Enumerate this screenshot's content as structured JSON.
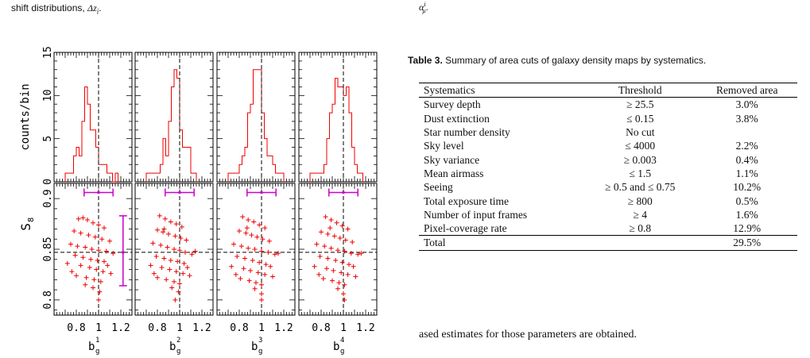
{
  "left_fragment": {
    "text": "shift distributions, ",
    "math": "Δz",
    "sub": "i",
    "tail": "."
  },
  "right_fragment": {
    "base": "α",
    "sup": "i",
    "sub": "μ",
    "tail": "."
  },
  "caption": {
    "label": "Table 3.",
    "text": " Summary of area cuts of galaxy density maps by systematics."
  },
  "table": {
    "headers": [
      "Systematics",
      "Threshold",
      "Removed area"
    ],
    "rows": [
      [
        "Survey depth",
        "≥ 25.5",
        "3.0%"
      ],
      [
        "Dust extinction",
        "≤ 0.15",
        "3.8%"
      ],
      [
        "Star number density",
        "No cut",
        ""
      ],
      [
        "Sky level",
        "≤ 4000",
        "2.2%"
      ],
      [
        "Sky variance",
        "≥ 0.003",
        "0.4%"
      ],
      [
        "Mean airmass",
        "≤ 1.5",
        "1.1%"
      ],
      [
        "Seeing",
        "≥ 0.5 and ≤ 0.75",
        "10.2%"
      ],
      [
        "Total exposure time",
        "≥ 800",
        "0.5%"
      ],
      [
        "Number of input frames",
        "≥ 4",
        "1.6%"
      ],
      [
        "Pixel-coverage rate",
        "≥ 0.8",
        "12.9%"
      ]
    ],
    "total": [
      "Total",
      "",
      "29.5%"
    ]
  },
  "body_text": "ased estimates for those parameters are obtained.",
  "chart_data": {
    "type": "histogram+scatter",
    "panels": [
      "b_g^1",
      "b_g^2",
      "b_g^3",
      "b_g^4"
    ],
    "xlabels": [
      {
        "base": "b",
        "sub": "g",
        "sup": "1"
      },
      {
        "base": "b",
        "sub": "g",
        "sup": "2"
      },
      {
        "base": "b",
        "sub": "g",
        "sup": "3"
      },
      {
        "base": "b",
        "sub": "g",
        "sup": "4"
      }
    ],
    "xticks": [
      "0.8",
      "1",
      "1.2"
    ],
    "xtick_values": [
      0.8,
      1.0,
      1.2
    ],
    "xlim": [
      0.6,
      1.3
    ],
    "top_ylabel": "counts/bin",
    "top_yticks": [
      "0",
      "5",
      "10",
      "15"
    ],
    "top_ytick_values": [
      0,
      5,
      10,
      15
    ],
    "top_ylim": [
      0,
      15
    ],
    "bottom_ylabel": "S",
    "bottom_ylabel_sub": "8",
    "bottom_yticks": [
      "0.8",
      "0.85",
      "0.9"
    ],
    "bottom_ytick_values": [
      0.8,
      0.85,
      0.9
    ],
    "bottom_ylim": [
      0.785,
      0.915
    ],
    "reference_x": 1.0,
    "reference_y": 0.847,
    "errorbar_color": "#cc00cc",
    "data_color": "#ee0000",
    "histograms": [
      {
        "edges": [
          0.7,
          0.725,
          0.75,
          0.775,
          0.8,
          0.825,
          0.85,
          0.875,
          0.9,
          0.925,
          0.95,
          0.975,
          1.0,
          1.025,
          1.05,
          1.075,
          1.1,
          1.125,
          1.15,
          1.175
        ],
        "counts": [
          1,
          1,
          1,
          3,
          4,
          3,
          7,
          11,
          9,
          6,
          6,
          4,
          2,
          2,
          2,
          1,
          1,
          0,
          1
        ]
      },
      {
        "edges": [
          0.7,
          0.725,
          0.75,
          0.775,
          0.8,
          0.825,
          0.85,
          0.875,
          0.9,
          0.925,
          0.95,
          0.975,
          1.0,
          1.025,
          1.05,
          1.075,
          1.1,
          1.125,
          1.15
        ],
        "counts": [
          1,
          1,
          1,
          1,
          1,
          2,
          5,
          3,
          7,
          11,
          13,
          12,
          6,
          4,
          4,
          4,
          1,
          1
        ]
      },
      {
        "edges": [
          0.7,
          0.725,
          0.75,
          0.775,
          0.8,
          0.825,
          0.85,
          0.875,
          0.9,
          0.925,
          0.95,
          0.975,
          1.0,
          1.025,
          1.05,
          1.075,
          1.1,
          1.125,
          1.15,
          1.175,
          1.2
        ],
        "counts": [
          1,
          1,
          1,
          1,
          2,
          3,
          4,
          8,
          9,
          13,
          13,
          13,
          8,
          5,
          3,
          3,
          2,
          1,
          1,
          1
        ]
      },
      {
        "edges": [
          0.7,
          0.725,
          0.75,
          0.775,
          0.8,
          0.825,
          0.85,
          0.875,
          0.9,
          0.925,
          0.95,
          0.975,
          1.0,
          1.025,
          1.05,
          1.075,
          1.1,
          1.125,
          1.15,
          1.175
        ],
        "counts": [
          1,
          1,
          1,
          1,
          1,
          2,
          5,
          8,
          9,
          12,
          11,
          11,
          10,
          11,
          8,
          4,
          2,
          1,
          1
        ]
      }
    ],
    "errorbars": {
      "horizontal": [
        {
          "y": 0.906,
          "xmin": 0.87,
          "xmax": 1.13
        },
        {
          "y": 0.906,
          "xmin": 0.87,
          "xmax": 1.13
        },
        {
          "y": 0.906,
          "xmin": 0.87,
          "xmax": 1.13
        },
        {
          "y": 0.906,
          "xmin": 0.87,
          "xmax": 1.13
        }
      ],
      "vertical": {
        "x": 1.22,
        "ymin": 0.814,
        "ymax": 0.883
      }
    },
    "scatter": [
      [
        [
          0.82,
          0.88
        ],
        [
          0.86,
          0.881
        ],
        [
          0.9,
          0.879
        ],
        [
          0.95,
          0.876
        ],
        [
          1.0,
          0.874
        ],
        [
          1.05,
          0.871
        ],
        [
          0.78,
          0.868
        ],
        [
          0.84,
          0.866
        ],
        [
          0.91,
          0.864
        ],
        [
          0.97,
          0.862
        ],
        [
          1.03,
          0.86
        ],
        [
          1.1,
          0.858
        ],
        [
          0.75,
          0.855
        ],
        [
          0.81,
          0.853
        ],
        [
          0.88,
          0.852
        ],
        [
          0.94,
          0.85
        ],
        [
          1.0,
          0.849
        ],
        [
          1.07,
          0.848
        ],
        [
          1.13,
          0.846
        ],
        [
          0.79,
          0.844
        ],
        [
          0.86,
          0.842
        ],
        [
          0.93,
          0.84
        ],
        [
          0.99,
          0.839
        ],
        [
          1.05,
          0.838
        ],
        [
          0.72,
          0.836
        ],
        [
          0.84,
          0.834
        ],
        [
          0.92,
          0.832
        ],
        [
          0.98,
          0.83
        ],
        [
          1.04,
          0.828
        ],
        [
          1.11,
          0.826
        ],
        [
          0.8,
          0.824
        ],
        [
          0.89,
          0.822
        ],
        [
          0.96,
          0.82
        ],
        [
          1.02,
          0.818
        ],
        [
          0.88,
          0.815
        ],
        [
          0.95,
          0.812
        ],
        [
          1.01,
          0.808
        ],
        [
          1.0,
          0.8
        ],
        [
          0.76,
          0.828
        ],
        [
          1.08,
          0.834
        ]
      ],
      [
        [
          0.82,
          0.883
        ],
        [
          0.87,
          0.88
        ],
        [
          0.92,
          0.877
        ],
        [
          0.97,
          0.875
        ],
        [
          1.02,
          0.872
        ],
        [
          0.8,
          0.869
        ],
        [
          0.85,
          0.867
        ],
        [
          0.9,
          0.865
        ],
        [
          0.96,
          0.863
        ],
        [
          1.01,
          0.861
        ],
        [
          1.06,
          0.859
        ],
        [
          0.76,
          0.856
        ],
        [
          0.83,
          0.854
        ],
        [
          0.89,
          0.852
        ],
        [
          0.95,
          0.85
        ],
        [
          1.0,
          0.849
        ],
        [
          1.05,
          0.847
        ],
        [
          1.11,
          0.845
        ],
        [
          0.79,
          0.843
        ],
        [
          0.86,
          0.841
        ],
        [
          0.92,
          0.839
        ],
        [
          0.98,
          0.838
        ],
        [
          1.04,
          0.836
        ],
        [
          0.74,
          0.834
        ],
        [
          0.84,
          0.832
        ],
        [
          0.91,
          0.83
        ],
        [
          0.97,
          0.828
        ],
        [
          1.03,
          0.826
        ],
        [
          1.09,
          0.824
        ],
        [
          0.8,
          0.822
        ],
        [
          0.88,
          0.82
        ],
        [
          0.95,
          0.818
        ],
        [
          1.0,
          0.816
        ],
        [
          0.93,
          0.812
        ],
        [
          0.99,
          0.808
        ],
        [
          0.96,
          0.8
        ],
        [
          0.77,
          0.826
        ],
        [
          1.07,
          0.832
        ],
        [
          1.14,
          0.848
        ],
        [
          0.86,
          0.87
        ]
      ],
      [
        [
          0.83,
          0.882
        ],
        [
          0.88,
          0.879
        ],
        [
          0.93,
          0.877
        ],
        [
          0.98,
          0.874
        ],
        [
          1.03,
          0.871
        ],
        [
          0.8,
          0.868
        ],
        [
          0.86,
          0.866
        ],
        [
          0.91,
          0.864
        ],
        [
          0.96,
          0.862
        ],
        [
          1.01,
          0.86
        ],
        [
          1.07,
          0.858
        ],
        [
          0.75,
          0.855
        ],
        [
          0.82,
          0.853
        ],
        [
          0.88,
          0.851
        ],
        [
          0.94,
          0.85
        ],
        [
          1.0,
          0.848
        ],
        [
          1.06,
          0.847
        ],
        [
          1.12,
          0.845
        ],
        [
          0.78,
          0.843
        ],
        [
          0.85,
          0.841
        ],
        [
          0.92,
          0.839
        ],
        [
          0.98,
          0.837
        ],
        [
          1.04,
          0.835
        ],
        [
          0.73,
          0.833
        ],
        [
          0.84,
          0.831
        ],
        [
          0.9,
          0.829
        ],
        [
          0.97,
          0.827
        ],
        [
          1.03,
          0.825
        ],
        [
          1.1,
          0.823
        ],
        [
          0.81,
          0.821
        ],
        [
          0.89,
          0.819
        ],
        [
          0.95,
          0.817
        ],
        [
          1.0,
          0.815
        ],
        [
          0.94,
          0.811
        ],
        [
          1.0,
          0.806
        ],
        [
          1.0,
          0.8
        ],
        [
          0.77,
          0.825
        ],
        [
          1.08,
          0.833
        ],
        [
          1.15,
          0.846
        ],
        [
          0.87,
          0.871
        ]
      ],
      [
        [
          0.84,
          0.882
        ],
        [
          0.89,
          0.879
        ],
        [
          0.94,
          0.876
        ],
        [
          0.99,
          0.873
        ],
        [
          1.04,
          0.87
        ],
        [
          0.8,
          0.867
        ],
        [
          0.86,
          0.865
        ],
        [
          0.92,
          0.863
        ],
        [
          0.97,
          0.861
        ],
        [
          1.02,
          0.859
        ],
        [
          1.08,
          0.857
        ],
        [
          0.76,
          0.855
        ],
        [
          0.83,
          0.853
        ],
        [
          0.89,
          0.851
        ],
        [
          0.95,
          0.849
        ],
        [
          1.01,
          0.848
        ],
        [
          1.07,
          0.846
        ],
        [
          1.13,
          0.845
        ],
        [
          0.79,
          0.843
        ],
        [
          0.86,
          0.841
        ],
        [
          0.93,
          0.839
        ],
        [
          0.99,
          0.837
        ],
        [
          1.05,
          0.835
        ],
        [
          0.74,
          0.833
        ],
        [
          0.85,
          0.831
        ],
        [
          0.91,
          0.829
        ],
        [
          0.98,
          0.827
        ],
        [
          1.04,
          0.825
        ],
        [
          1.11,
          0.823
        ],
        [
          0.82,
          0.821
        ],
        [
          0.9,
          0.819
        ],
        [
          0.96,
          0.817
        ],
        [
          1.01,
          0.815
        ],
        [
          0.95,
          0.811
        ],
        [
          1.0,
          0.806
        ],
        [
          1.01,
          0.8
        ],
        [
          0.78,
          0.825
        ],
        [
          1.09,
          0.833
        ],
        [
          1.16,
          0.846
        ],
        [
          0.88,
          0.871
        ]
      ]
    ]
  }
}
